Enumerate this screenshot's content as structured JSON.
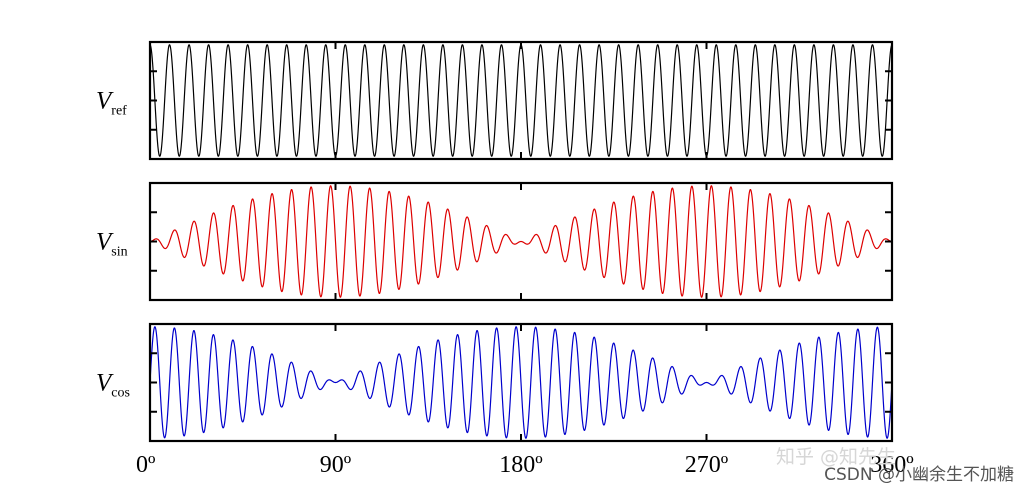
{
  "chart_data": [
    {
      "type": "line",
      "ylabel": "V",
      "ylabel_subscript": "ref",
      "x_domain_deg": [
        0,
        360
      ],
      "ylim": [
        -1.05,
        1.05
      ],
      "carrier_cycles": 38,
      "series": [
        {
          "envelope": "constant",
          "amplitude": 1.0,
          "color": "#000000"
        }
      ]
    },
    {
      "type": "line",
      "ylabel": "V",
      "ylabel_subscript": "sin",
      "x_domain_deg": [
        0,
        360
      ],
      "ylim": [
        -1.05,
        1.05
      ],
      "carrier_cycles": 38,
      "series": [
        {
          "envelope": "sin",
          "amplitude": 1.0,
          "color": "#dd0000"
        }
      ]
    },
    {
      "type": "line",
      "ylabel": "V",
      "ylabel_subscript": "cos",
      "x_domain_deg": [
        0,
        360
      ],
      "ylim": [
        -1.05,
        1.05
      ],
      "carrier_cycles": 38,
      "series": [
        {
          "envelope": "cos",
          "amplitude": 1.0,
          "color": "#0000cc"
        }
      ]
    }
  ],
  "x_axis": {
    "tick_values": [
      0,
      90,
      180,
      270,
      360
    ],
    "tick_labels": [
      "0º",
      "90º",
      "180º",
      "270º",
      "360º"
    ]
  },
  "watermarks": {
    "zhihu": "知乎 @知先生",
    "csdn": "CSDN @小幽余生不加糖"
  }
}
